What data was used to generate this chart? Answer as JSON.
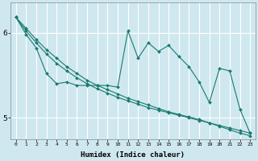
{
  "xlabel": "Humidex (Indice chaleur)",
  "bg_color": "#cfe8f0",
  "grid_color": "#ffffff",
  "line_color": "#1a7a6e",
  "marker": "D",
  "marker_size": 2.0,
  "line_width": 0.8,
  "x_values": [
    0,
    1,
    2,
    3,
    4,
    5,
    6,
    7,
    8,
    9,
    10,
    11,
    12,
    13,
    14,
    15,
    16,
    17,
    18,
    19,
    20,
    21,
    22,
    23
  ],
  "series": [
    [
      6.18,
      6.05,
      5.92,
      5.8,
      5.7,
      5.6,
      5.52,
      5.44,
      5.38,
      5.33,
      5.28,
      5.23,
      5.19,
      5.15,
      5.11,
      5.07,
      5.04,
      5.01,
      4.98,
      4.94,
      4.91,
      4.88,
      4.85,
      4.82
    ],
    [
      6.18,
      6.02,
      5.88,
      5.75,
      5.64,
      5.55,
      5.47,
      5.4,
      5.34,
      5.29,
      5.24,
      5.2,
      5.16,
      5.12,
      5.09,
      5.06,
      5.03,
      5.0,
      4.97,
      4.94,
      4.9,
      4.86,
      4.82,
      4.79
    ],
    [
      6.18,
      5.98,
      5.82,
      5.52,
      5.4,
      5.42,
      5.38,
      5.38,
      5.38,
      5.38,
      5.36,
      6.02,
      5.7,
      5.88,
      5.78,
      5.85,
      5.72,
      5.6,
      5.42,
      5.18,
      5.58,
      5.55,
      5.1,
      4.82
    ]
  ],
  "ylim": [
    4.75,
    6.35
  ],
  "yticks": [
    5,
    6
  ],
  "xlim": [
    -0.5,
    23.5
  ]
}
